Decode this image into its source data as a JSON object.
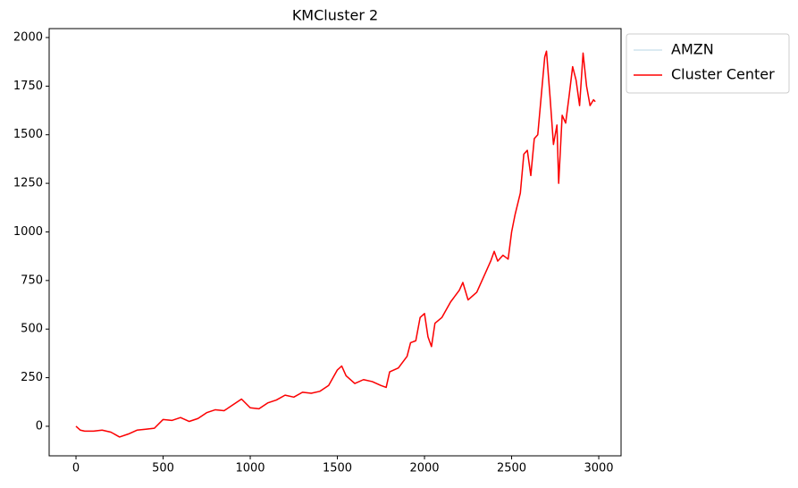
{
  "chart_data": {
    "type": "line",
    "title": "KMCluster 2",
    "x": [
      0,
      25,
      50,
      100,
      150,
      200,
      250,
      300,
      350,
      400,
      450,
      500,
      550,
      600,
      650,
      700,
      750,
      800,
      850,
      900,
      950,
      1000,
      1050,
      1100,
      1150,
      1200,
      1250,
      1300,
      1350,
      1400,
      1450,
      1500,
      1525,
      1550,
      1600,
      1650,
      1700,
      1750,
      1780,
      1800,
      1850,
      1900,
      1920,
      1950,
      1975,
      2000,
      2020,
      2040,
      2060,
      2100,
      2150,
      2200,
      2220,
      2250,
      2300,
      2350,
      2380,
      2400,
      2420,
      2450,
      2480,
      2500,
      2520,
      2550,
      2570,
      2590,
      2610,
      2630,
      2650,
      2670,
      2690,
      2700,
      2720,
      2740,
      2760,
      2770,
      2790,
      2810,
      2830,
      2850,
      2870,
      2890,
      2910,
      2930,
      2950,
      2970,
      2980
    ],
    "series": [
      {
        "name": "AMZN",
        "color": "#cfe4ee",
        "values": [
          0,
          -20,
          -25,
          -25,
          -20,
          -30,
          -55,
          -40,
          -20,
          -15,
          -10,
          35,
          30,
          45,
          25,
          40,
          70,
          85,
          80,
          110,
          140,
          95,
          90,
          120,
          135,
          160,
          150,
          175,
          170,
          180,
          210,
          290,
          310,
          260,
          220,
          240,
          230,
          210,
          200,
          280,
          300,
          360,
          430,
          440,
          560,
          580,
          460,
          410,
          530,
          560,
          640,
          700,
          740,
          650,
          690,
          790,
          850,
          900,
          850,
          880,
          860,
          1000,
          1090,
          1200,
          1400,
          1420,
          1290,
          1480,
          1500,
          1700,
          1900,
          1930,
          1700,
          1450,
          1550,
          1250,
          1600,
          1560,
          1700,
          1850,
          1780,
          1650,
          1920,
          1750,
          1650,
          1680,
          1670
        ]
      },
      {
        "name": "Cluster Center",
        "color": "#ff0000",
        "values": [
          0,
          -20,
          -25,
          -25,
          -20,
          -30,
          -55,
          -40,
          -20,
          -15,
          -10,
          35,
          30,
          45,
          25,
          40,
          70,
          85,
          80,
          110,
          140,
          95,
          90,
          120,
          135,
          160,
          150,
          175,
          170,
          180,
          210,
          290,
          310,
          260,
          220,
          240,
          230,
          210,
          200,
          280,
          300,
          360,
          430,
          440,
          560,
          580,
          460,
          410,
          530,
          560,
          640,
          700,
          740,
          650,
          690,
          790,
          850,
          900,
          850,
          880,
          860,
          1000,
          1090,
          1200,
          1400,
          1420,
          1290,
          1480,
          1500,
          1700,
          1900,
          1930,
          1700,
          1450,
          1550,
          1250,
          1600,
          1560,
          1700,
          1850,
          1780,
          1650,
          1920,
          1750,
          1650,
          1680,
          1670
        ]
      }
    ],
    "xlim": [
      -154,
      3128
    ],
    "ylim": [
      -152,
      2046
    ],
    "xticks": [
      0,
      500,
      1000,
      1500,
      2000,
      2500,
      3000
    ],
    "yticks": [
      0,
      250,
      500,
      750,
      1000,
      1250,
      1500,
      1750,
      2000
    ],
    "grid": false,
    "legend": "outside-upper-right"
  }
}
